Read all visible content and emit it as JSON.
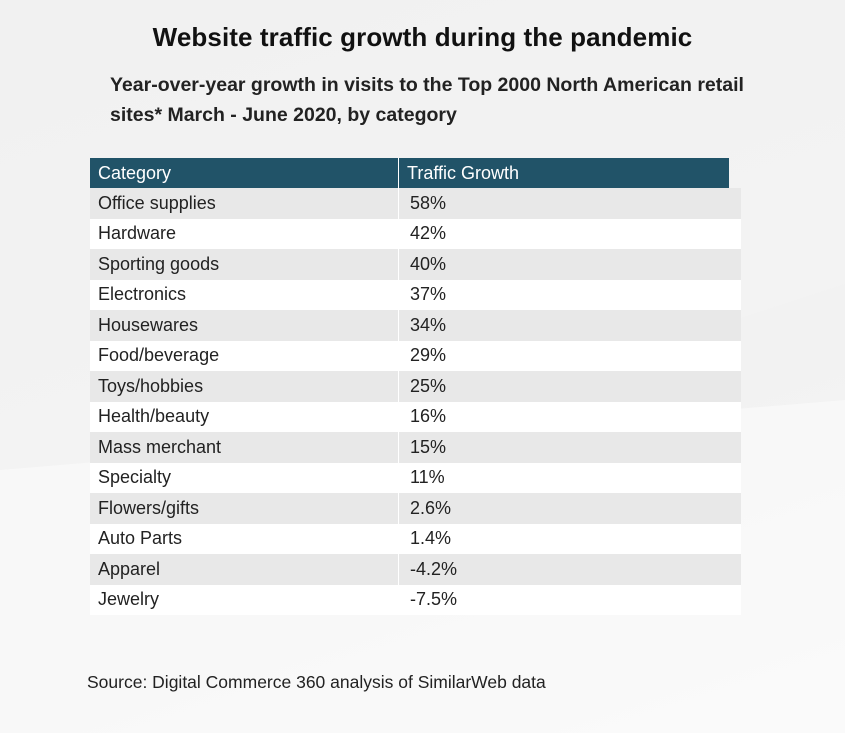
{
  "chart_data": {
    "type": "table",
    "title": "Website traffic growth during the pandemic",
    "subtitle": "Year-over-year growth in visits to the Top 2000 North American retail sites* March - June 2020, by category",
    "columns": [
      "Category",
      "Traffic Growth"
    ],
    "rows": [
      {
        "category": "Office supplies",
        "growth": "58%"
      },
      {
        "category": "Hardware",
        "growth": "42%"
      },
      {
        "category": "Sporting goods",
        "growth": "40%"
      },
      {
        "category": "Electronics",
        "growth": "37%"
      },
      {
        "category": "Housewares",
        "growth": "34%"
      },
      {
        "category": "Food/beverage",
        "growth": "29%"
      },
      {
        "category": "Toys/hobbies",
        "growth": "25%"
      },
      {
        "category": "Health/beauty",
        "growth": "16%"
      },
      {
        "category": "Mass merchant",
        "growth": "15%"
      },
      {
        "category": "Specialty",
        "growth": "11%"
      },
      {
        "category": "Flowers/gifts",
        "growth": "2.6%"
      },
      {
        "category": "Auto Parts",
        "growth": "1.4%"
      },
      {
        "category": "Apparel",
        "growth": "-4.2%"
      },
      {
        "category": "Jewelry",
        "growth": "-7.5%"
      }
    ],
    "source": "Source: Digital Commerce 360 analysis of SimilarWeb data"
  },
  "colors": {
    "header_background": "#215368",
    "header_text": "#ffffff",
    "row_shaded": "#e8e8e8",
    "row_plain": "#ffffff"
  }
}
